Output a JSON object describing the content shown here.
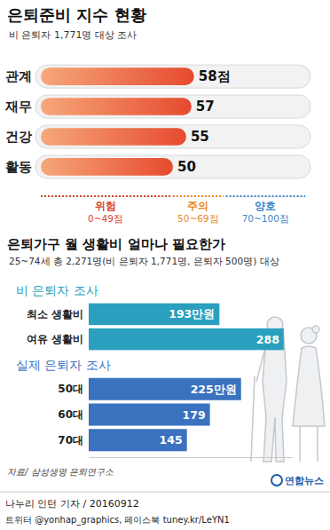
{
  "chart_data": [
    {
      "type": "bar",
      "orientation": "horizontal",
      "title": "은퇴준비 지수 현황",
      "subtitle": "비 은퇴자 1,771명 대상 조사",
      "categories": [
        "관계",
        "재무",
        "건강",
        "활동"
      ],
      "values": [
        58,
        57,
        55,
        50
      ],
      "value_labels": [
        "58점",
        "57",
        "55",
        "50"
      ],
      "color": "#e64a2e",
      "xlim": [
        0,
        100
      ],
      "data_labels": true,
      "tick_labels": "y",
      "bands": [
        {
          "name": "위험",
          "label": "0~49점",
          "from": 0,
          "to": 49,
          "color": "#d9452b"
        },
        {
          "name": "주의",
          "label": "50~69점",
          "from": 50,
          "to": 69,
          "color": "#e8891e"
        },
        {
          "name": "양호",
          "label": "70~100점",
          "from": 70,
          "to": 100,
          "color": "#3a86c8"
        }
      ]
    },
    {
      "type": "bar",
      "orientation": "horizontal",
      "title": "은퇴가구 월 생활비 얼마나 필요한가",
      "subtitle": "25~74세 총 2,271명(비 은퇴자 1,771명, 은퇴자 500명) 대상",
      "categories": [
        "최소 생활비",
        "여유 생활비",
        "50대",
        "60대",
        "70대"
      ],
      "series": [
        {
          "name": "비 은퇴자 조사",
          "color": "#2aa0be",
          "values": [
            193,
            288,
            null,
            null,
            null
          ],
          "value_labels": [
            "193만원",
            "288",
            null,
            null,
            null
          ]
        },
        {
          "name": "실제 은퇴자 조사",
          "color": "#3a72bf",
          "values": [
            null,
            null,
            225,
            179,
            145
          ],
          "value_labels": [
            null,
            null,
            "225만원",
            "179",
            "145"
          ]
        }
      ],
      "xlim": [
        0,
        300
      ],
      "data_labels": true,
      "tick_labels": "y"
    }
  ],
  "footer": {
    "source": "자료/ 삼성생명 은퇴연구소",
    "logo": "연합뉴스",
    "credit": "나누리 인턴 기자 / 20160912",
    "social": "트위터 @yonhap_graphics, 페이스북 tuney.kr/LeYN1"
  }
}
